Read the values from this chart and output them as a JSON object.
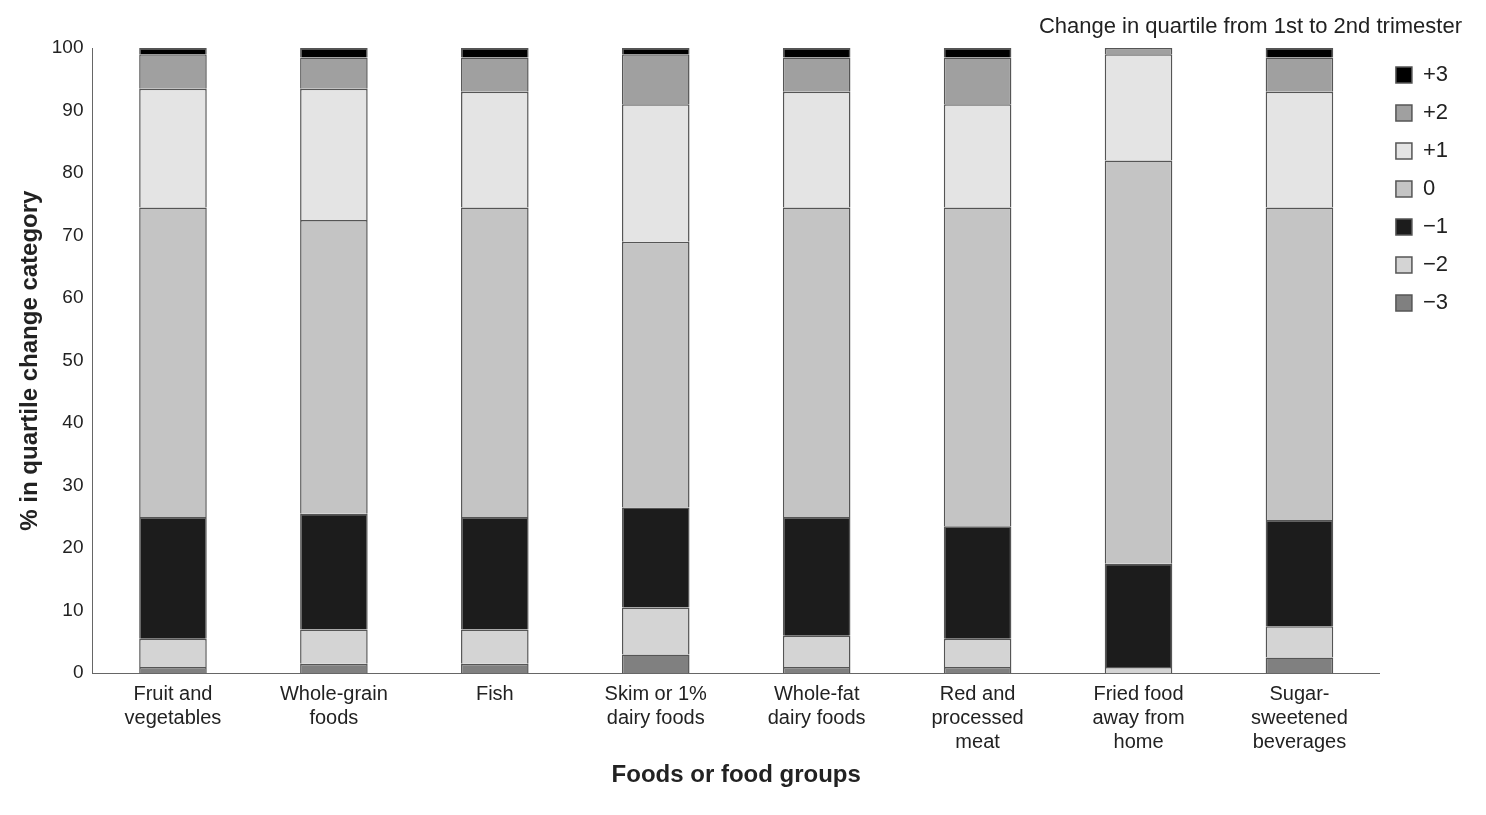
{
  "chart_data": {
    "type": "bar",
    "stacked": true,
    "xlabel": "Foods or food groups",
    "ylabel": "% in quartile change category",
    "legend_title": "Change in quartile from 1st to 2nd trimester",
    "legend": "right",
    "grid": false,
    "categories": [
      "Fruit and vegetables",
      "Whole-grain foods",
      "Fish",
      "Skim or 1% dairy foods",
      "Whole-fat dairy foods",
      "Red and processed meat",
      "Fried food away from home",
      "Sugar-sweetened beverages"
    ],
    "ylim": [
      0,
      100
    ],
    "yticks": [
      0,
      10,
      20,
      30,
      40,
      50,
      60,
      70,
      80,
      90,
      100
    ],
    "series": [
      {
        "name": "−3",
        "color": "#808080",
        "values": [
          1,
          1.5,
          1.5,
          3,
          1,
          1,
          0,
          2.5
        ]
      },
      {
        "name": "−2",
        "color": "#d4d4d4",
        "values": [
          4.5,
          5.5,
          5.5,
          7.5,
          5,
          4.5,
          1,
          5
        ]
      },
      {
        "name": "−1",
        "color": "#1c1c1c",
        "values": [
          19.5,
          18.5,
          18,
          16,
          19,
          18,
          16.5,
          17
        ]
      },
      {
        "name": "0",
        "color": "#c4c4c4",
        "values": [
          49.5,
          47,
          49.5,
          42.5,
          49.5,
          51,
          64.5,
          50
        ]
      },
      {
        "name": "+1",
        "color": "#e4e4e4",
        "values": [
          19,
          21,
          18.5,
          22,
          18.5,
          16.5,
          17,
          18.5
        ]
      },
      {
        "name": "+2",
        "color": "#a0a0a0",
        "values": [
          5.5,
          5,
          5.5,
          8,
          5.5,
          7.5,
          1,
          5.5
        ]
      },
      {
        "name": "+3",
        "color": "#000000",
        "values": [
          1,
          1.5,
          1.5,
          1,
          1.5,
          1.5,
          0,
          1.5
        ]
      }
    ]
  }
}
